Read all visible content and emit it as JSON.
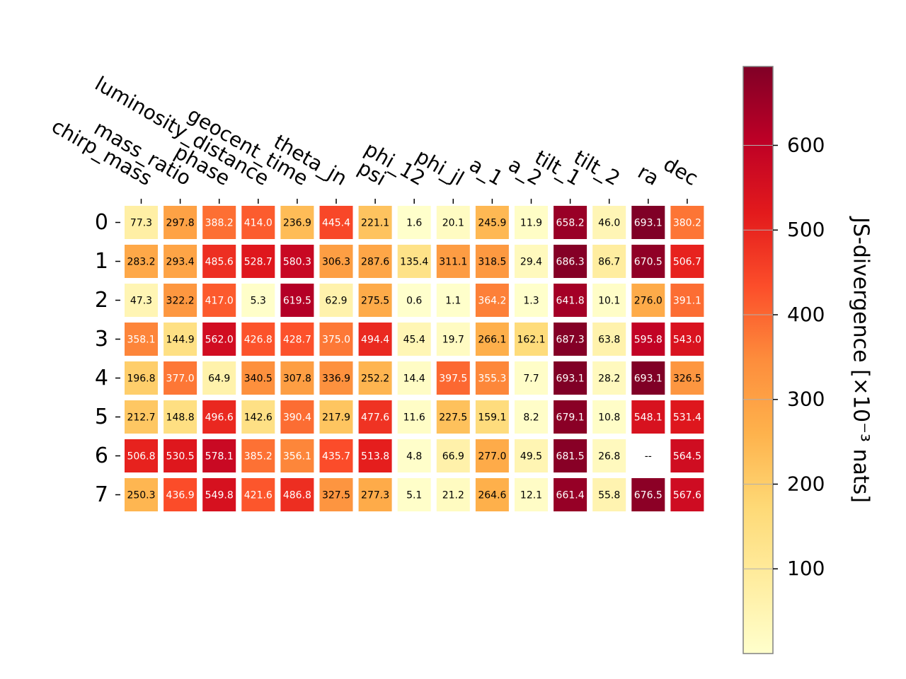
{
  "chart_data": {
    "type": "heatmap",
    "columns": [
      "chirp_mass",
      "mass_ratio",
      "phase",
      "luminosity_distance",
      "geocent_time",
      "theta_jn",
      "psi",
      "phi_12",
      "phi_jl",
      "a_1",
      "a_2",
      "tilt_1",
      "tilt_2",
      "ra",
      "dec"
    ],
    "rows": [
      "0",
      "1",
      "2",
      "3",
      "4",
      "5",
      "6",
      "7"
    ],
    "values": [
      [
        77.3,
        297.8,
        388.2,
        414.0,
        236.9,
        445.4,
        221.1,
        1.6,
        20.1,
        245.9,
        11.9,
        658.2,
        46.0,
        693.1,
        380.2
      ],
      [
        283.2,
        293.4,
        485.6,
        528.7,
        580.3,
        306.3,
        287.6,
        135.4,
        311.1,
        318.5,
        29.4,
        686.3,
        86.7,
        670.5,
        506.7
      ],
      [
        47.3,
        322.2,
        417.0,
        5.3,
        619.5,
        62.9,
        275.5,
        0.6,
        1.1,
        364.2,
        1.3,
        641.8,
        10.1,
        276.0,
        391.1
      ],
      [
        358.1,
        144.9,
        562.0,
        426.8,
        428.7,
        375.0,
        494.4,
        45.4,
        19.7,
        266.1,
        162.1,
        687.3,
        63.8,
        595.8,
        543.0
      ],
      [
        196.8,
        377.0,
        64.9,
        340.5,
        307.8,
        336.9,
        252.2,
        14.4,
        397.5,
        355.3,
        7.7,
        693.1,
        28.2,
        693.1,
        326.5
      ],
      [
        212.7,
        148.8,
        496.6,
        142.6,
        390.4,
        217.9,
        477.6,
        11.6,
        227.5,
        159.1,
        8.2,
        679.1,
        10.8,
        548.1,
        531.4
      ],
      [
        506.8,
        530.5,
        578.1,
        385.2,
        356.1,
        435.7,
        513.8,
        4.8,
        66.9,
        277.0,
        49.5,
        681.5,
        26.8,
        null,
        564.5
      ],
      [
        250.3,
        436.9,
        549.8,
        421.6,
        486.8,
        327.5,
        277.3,
        5.1,
        21.2,
        264.6,
        12.1,
        661.4,
        55.8,
        676.5,
        567.6
      ]
    ],
    "missing_label": "--",
    "colorbar": {
      "label": "JS-divergence [×10⁻³ nats]",
      "range": [
        0,
        693.1
      ],
      "ticks": [
        100,
        200,
        300,
        400,
        500,
        600
      ],
      "colormap": "YlOrRd",
      "colors": [
        "#ffffcc",
        "#ffeda0",
        "#fed976",
        "#feb24c",
        "#fd8d3c",
        "#fc4e2a",
        "#e31a1c",
        "#bd0026",
        "#800026"
      ]
    },
    "xlabel": "",
    "ylabel": "",
    "title": "",
    "grid": false
  }
}
